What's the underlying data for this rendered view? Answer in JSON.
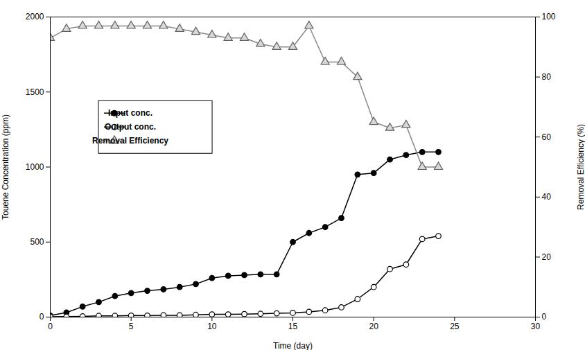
{
  "chart_data": {
    "type": "line",
    "xlabel": "Time (day)",
    "ylabel": "Touene Concentration (ppm)",
    "y2label": "Removal Efficiency (%)",
    "x": [
      0,
      1,
      2,
      3,
      4,
      5,
      6,
      7,
      8,
      9,
      10,
      11,
      12,
      13,
      14,
      15,
      16,
      17,
      18,
      19,
      20,
      21,
      22,
      23,
      24
    ],
    "series": [
      {
        "name": "Input conc.",
        "color": "#000000",
        "marker": "circle",
        "values": [
          10,
          30,
          70,
          100,
          140,
          160,
          175,
          185,
          200,
          220,
          260,
          275,
          280,
          285,
          285,
          500,
          560,
          600,
          660,
          950,
          960,
          1050,
          1080,
          1100,
          1100
        ]
      },
      {
        "name": "Output conc.",
        "color": "#000000",
        "marker": "open circle",
        "values": [
          2,
          3,
          5,
          8,
          8,
          10,
          10,
          12,
          12,
          15,
          18,
          18,
          20,
          22,
          25,
          28,
          35,
          45,
          65,
          120,
          200,
          320,
          350,
          520,
          540
        ]
      },
      {
        "name": "Removal Efficiency",
        "color": "#888888",
        "marker": "triangle",
        "axis": "y2",
        "values": [
          93,
          96,
          97,
          97,
          97,
          97,
          97,
          97,
          96,
          95,
          94,
          93,
          93,
          91,
          90,
          90,
          97,
          85,
          85,
          80,
          65,
          63,
          64,
          50,
          50
        ]
      }
    ],
    "xlim": [
      0,
      30
    ],
    "xticks": [
      0,
      5,
      10,
      15,
      20,
      25,
      30
    ],
    "ylim": [
      0,
      2000
    ],
    "yticks": [
      0,
      500,
      1000,
      1500,
      2000
    ],
    "y2lim": [
      0,
      100
    ],
    "y2ticks": [
      0,
      20,
      40,
      60,
      80,
      100
    ],
    "grid": false,
    "legend": "upper left"
  }
}
